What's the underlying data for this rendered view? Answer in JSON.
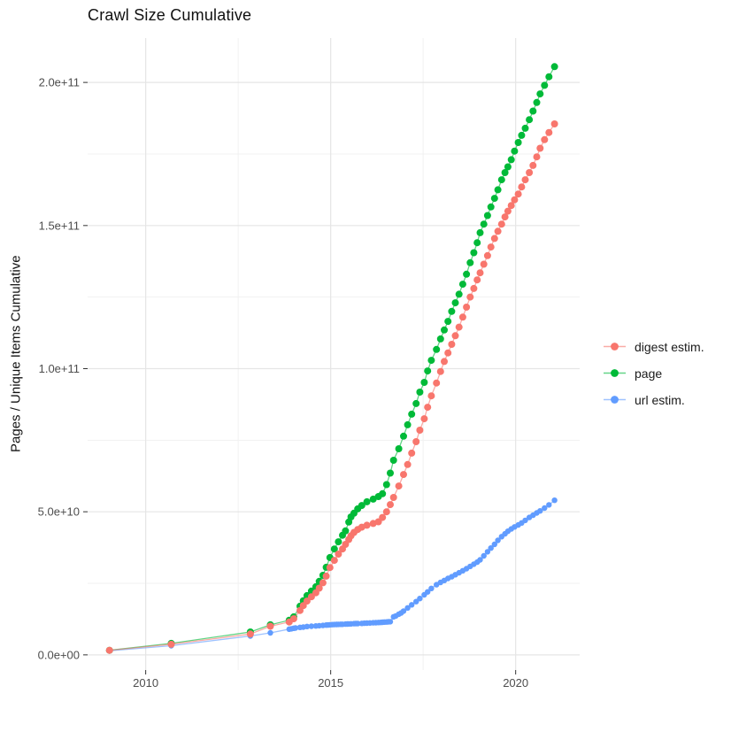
{
  "chart_data": {
    "type": "line",
    "title": "Crawl Size Cumulative",
    "xlabel": "",
    "ylabel": "Pages / Unique Items Cumulative",
    "legend_position": "right-center",
    "grid": true,
    "background": "#FFFFFF",
    "grid_major_color": "#E5E5E5",
    "grid_minor_color": "#F1F1F1",
    "tick_mark_color": "#333333",
    "tick_label_color": "#4D4D4D",
    "xlim": [
      2008.43,
      2021.73
    ],
    "y_value_unit": 1000000000.0,
    "ylim_e9": [
      -5.3,
      215.5
    ],
    "x_ticks": [
      {
        "value": 2010,
        "label": "2010"
      },
      {
        "value": 2015,
        "label": "2015"
      },
      {
        "value": 2020,
        "label": "2020"
      }
    ],
    "x_minor_ticks": [
      2012.5,
      2017.5
    ],
    "y_ticks": [
      {
        "value": 0,
        "label": "0.0e+00"
      },
      {
        "value": 50,
        "label": "5.0e+10"
      },
      {
        "value": 100,
        "label": "1.0e+11"
      },
      {
        "value": 150,
        "label": "1.5e+11"
      },
      {
        "value": 200,
        "label": "2.0e+11"
      }
    ],
    "y_minor_ticks": [
      25,
      75,
      125,
      175
    ],
    "series": [
      {
        "name": "digest estim.",
        "color": "#F8766D",
        "z": 3,
        "point_radius": 4,
        "points_year_billions": [
          [
            2009.02,
            1.6
          ],
          [
            2010.69,
            3.7
          ],
          [
            2012.83,
            7.3
          ],
          [
            2013.37,
            10.0
          ],
          [
            2013.88,
            11.5
          ],
          [
            2014.0,
            12.6
          ],
          [
            2014.17,
            15.5
          ],
          [
            2014.26,
            17.2
          ],
          [
            2014.36,
            18.8
          ],
          [
            2014.48,
            20.3
          ],
          [
            2014.6,
            21.7
          ],
          [
            2014.69,
            23.3
          ],
          [
            2014.79,
            25.2
          ],
          [
            2014.88,
            27.5
          ],
          [
            2014.98,
            30.5
          ],
          [
            2015.1,
            33.0
          ],
          [
            2015.21,
            35.2
          ],
          [
            2015.32,
            37.0
          ],
          [
            2015.4,
            38.6
          ],
          [
            2015.49,
            40.3
          ],
          [
            2015.55,
            41.6
          ],
          [
            2015.63,
            42.8
          ],
          [
            2015.73,
            43.8
          ],
          [
            2015.84,
            44.6
          ],
          [
            2015.98,
            45.3
          ],
          [
            2016.15,
            45.9
          ],
          [
            2016.29,
            46.5
          ],
          [
            2016.4,
            48.0
          ],
          [
            2016.51,
            50.0
          ],
          [
            2016.61,
            52.5
          ],
          [
            2016.7,
            55.0
          ],
          [
            2016.84,
            59.0
          ],
          [
            2016.97,
            63.0
          ],
          [
            2017.08,
            66.5
          ],
          [
            2017.19,
            70.5
          ],
          [
            2017.31,
            74.5
          ],
          [
            2017.41,
            78.5
          ],
          [
            2017.53,
            82.5
          ],
          [
            2017.62,
            86.5
          ],
          [
            2017.72,
            90.5
          ],
          [
            2017.86,
            95.0
          ],
          [
            2017.97,
            99.0
          ],
          [
            2018.07,
            102.5
          ],
          [
            2018.17,
            105.5
          ],
          [
            2018.27,
            108.5
          ],
          [
            2018.37,
            111.5
          ],
          [
            2018.47,
            114.5
          ],
          [
            2018.57,
            118.0
          ],
          [
            2018.67,
            121.5
          ],
          [
            2018.77,
            125.0
          ],
          [
            2018.87,
            128.0
          ],
          [
            2018.96,
            131.0
          ],
          [
            2019.04,
            133.5
          ],
          [
            2019.14,
            136.5
          ],
          [
            2019.24,
            139.5
          ],
          [
            2019.33,
            142.5
          ],
          [
            2019.43,
            145.5
          ],
          [
            2019.52,
            148.0
          ],
          [
            2019.62,
            150.5
          ],
          [
            2019.71,
            153.0
          ],
          [
            2019.79,
            155.0
          ],
          [
            2019.88,
            157.0
          ],
          [
            2019.97,
            159.0
          ],
          [
            2020.07,
            161.0
          ],
          [
            2020.16,
            163.5
          ],
          [
            2020.26,
            166.0
          ],
          [
            2020.37,
            168.5
          ],
          [
            2020.47,
            171.0
          ],
          [
            2020.57,
            174.0
          ],
          [
            2020.66,
            177.0
          ],
          [
            2020.78,
            180.0
          ],
          [
            2020.9,
            182.5
          ],
          [
            2021.05,
            185.5
          ]
        ]
      },
      {
        "name": "page",
        "color": "#00BA38",
        "z": 1,
        "point_radius": 4,
        "points_year_billions": [
          [
            2009.02,
            1.6
          ],
          [
            2010.69,
            4.0
          ],
          [
            2012.83,
            8.0
          ],
          [
            2013.37,
            10.5
          ],
          [
            2013.88,
            12.1
          ],
          [
            2014.0,
            13.3
          ],
          [
            2014.17,
            17.0
          ],
          [
            2014.26,
            18.9
          ],
          [
            2014.36,
            20.7
          ],
          [
            2014.48,
            22.3
          ],
          [
            2014.6,
            23.8
          ],
          [
            2014.69,
            25.7
          ],
          [
            2014.79,
            27.8
          ],
          [
            2014.88,
            30.6
          ],
          [
            2014.98,
            34.0
          ],
          [
            2015.1,
            37.0
          ],
          [
            2015.21,
            39.5
          ],
          [
            2015.32,
            41.8
          ],
          [
            2015.4,
            43.3
          ],
          [
            2015.49,
            46.4
          ],
          [
            2015.55,
            48.2
          ],
          [
            2015.63,
            49.5
          ],
          [
            2015.73,
            51.0
          ],
          [
            2015.84,
            52.2
          ],
          [
            2015.98,
            53.5
          ],
          [
            2016.15,
            54.4
          ],
          [
            2016.29,
            55.3
          ],
          [
            2016.4,
            56.3
          ],
          [
            2016.51,
            59.5
          ],
          [
            2016.61,
            63.5
          ],
          [
            2016.7,
            68.0
          ],
          [
            2016.84,
            72.0
          ],
          [
            2016.97,
            76.4
          ],
          [
            2017.08,
            80.4
          ],
          [
            2017.19,
            84.1
          ],
          [
            2017.31,
            87.8
          ],
          [
            2017.41,
            91.8
          ],
          [
            2017.53,
            95.2
          ],
          [
            2017.62,
            99.2
          ],
          [
            2017.72,
            102.9
          ],
          [
            2017.86,
            106.7
          ],
          [
            2017.97,
            110.4
          ],
          [
            2018.07,
            113.5
          ],
          [
            2018.17,
            116.5
          ],
          [
            2018.27,
            120.0
          ],
          [
            2018.37,
            123.0
          ],
          [
            2018.47,
            126.0
          ],
          [
            2018.57,
            129.5
          ],
          [
            2018.67,
            133.0
          ],
          [
            2018.77,
            137.0
          ],
          [
            2018.87,
            140.5
          ],
          [
            2018.96,
            144.0
          ],
          [
            2019.04,
            147.5
          ],
          [
            2019.14,
            150.5
          ],
          [
            2019.24,
            153.5
          ],
          [
            2019.33,
            156.5
          ],
          [
            2019.43,
            159.5
          ],
          [
            2019.52,
            162.5
          ],
          [
            2019.62,
            166.0
          ],
          [
            2019.71,
            168.5
          ],
          [
            2019.79,
            170.5
          ],
          [
            2019.88,
            173.0
          ],
          [
            2019.97,
            176.0
          ],
          [
            2020.07,
            179.0
          ],
          [
            2020.16,
            181.5
          ],
          [
            2020.26,
            184.0
          ],
          [
            2020.37,
            187.0
          ],
          [
            2020.47,
            190.0
          ],
          [
            2020.57,
            193.0
          ],
          [
            2020.66,
            196.0
          ],
          [
            2020.78,
            199.0
          ],
          [
            2020.9,
            202.0
          ],
          [
            2021.05,
            205.5
          ]
        ]
      },
      {
        "name": "url estim.",
        "color": "#619CFF",
        "z": 2,
        "point_radius": 3.2,
        "points_year_billions": [
          [
            2009.02,
            1.4
          ],
          [
            2010.69,
            3.2
          ],
          [
            2012.83,
            6.6
          ],
          [
            2013.37,
            7.7
          ],
          [
            2013.88,
            9.0
          ],
          [
            2013.94,
            9.1
          ],
          [
            2014.0,
            9.3
          ],
          [
            2014.05,
            9.4
          ],
          [
            2014.17,
            9.6
          ],
          [
            2014.26,
            9.7
          ],
          [
            2014.36,
            9.9
          ],
          [
            2014.48,
            10.0
          ],
          [
            2014.6,
            10.1
          ],
          [
            2014.69,
            10.2
          ],
          [
            2014.79,
            10.3
          ],
          [
            2014.88,
            10.4
          ],
          [
            2014.93,
            10.45
          ],
          [
            2014.98,
            10.5
          ],
          [
            2015.04,
            10.55
          ],
          [
            2015.1,
            10.6
          ],
          [
            2015.16,
            10.62
          ],
          [
            2015.21,
            10.65
          ],
          [
            2015.27,
            10.68
          ],
          [
            2015.32,
            10.7
          ],
          [
            2015.4,
            10.75
          ],
          [
            2015.45,
            10.78
          ],
          [
            2015.49,
            10.8
          ],
          [
            2015.55,
            10.85
          ],
          [
            2015.63,
            10.9
          ],
          [
            2015.68,
            10.92
          ],
          [
            2015.73,
            10.95
          ],
          [
            2015.84,
            11.0
          ],
          [
            2015.91,
            11.05
          ],
          [
            2015.98,
            11.1
          ],
          [
            2016.06,
            11.15
          ],
          [
            2016.15,
            11.2
          ],
          [
            2016.22,
            11.25
          ],
          [
            2016.29,
            11.3
          ],
          [
            2016.35,
            11.35
          ],
          [
            2016.4,
            11.4
          ],
          [
            2016.45,
            11.45
          ],
          [
            2016.51,
            11.5
          ],
          [
            2016.56,
            11.55
          ],
          [
            2016.61,
            11.6
          ],
          [
            2016.7,
            13.3
          ],
          [
            2016.76,
            13.6
          ],
          [
            2016.84,
            14.2
          ],
          [
            2016.9,
            14.6
          ],
          [
            2016.97,
            15.3
          ],
          [
            2017.08,
            16.4
          ],
          [
            2017.19,
            17.5
          ],
          [
            2017.31,
            18.6
          ],
          [
            2017.41,
            19.7
          ],
          [
            2017.53,
            21.0
          ],
          [
            2017.62,
            22.0
          ],
          [
            2017.72,
            23.2
          ],
          [
            2017.86,
            24.5
          ],
          [
            2017.97,
            25.3
          ],
          [
            2018.07,
            26.0
          ],
          [
            2018.17,
            26.7
          ],
          [
            2018.27,
            27.3
          ],
          [
            2018.37,
            28.0
          ],
          [
            2018.47,
            28.7
          ],
          [
            2018.57,
            29.4
          ],
          [
            2018.67,
            30.1
          ],
          [
            2018.77,
            30.9
          ],
          [
            2018.87,
            31.7
          ],
          [
            2018.96,
            32.4
          ],
          [
            2019.04,
            33.2
          ],
          [
            2019.14,
            34.6
          ],
          [
            2019.24,
            36.0
          ],
          [
            2019.33,
            37.3
          ],
          [
            2019.43,
            38.6
          ],
          [
            2019.52,
            40.0
          ],
          [
            2019.62,
            41.3
          ],
          [
            2019.71,
            42.3
          ],
          [
            2019.79,
            43.2
          ],
          [
            2019.88,
            44.0
          ],
          [
            2019.97,
            44.7
          ],
          [
            2020.07,
            45.4
          ],
          [
            2020.16,
            46.1
          ],
          [
            2020.26,
            47.0
          ],
          [
            2020.37,
            48.0
          ],
          [
            2020.47,
            48.8
          ],
          [
            2020.57,
            49.6
          ],
          [
            2020.66,
            50.3
          ],
          [
            2020.78,
            51.3
          ],
          [
            2020.9,
            52.4
          ],
          [
            2021.05,
            54.0
          ]
        ]
      }
    ]
  }
}
